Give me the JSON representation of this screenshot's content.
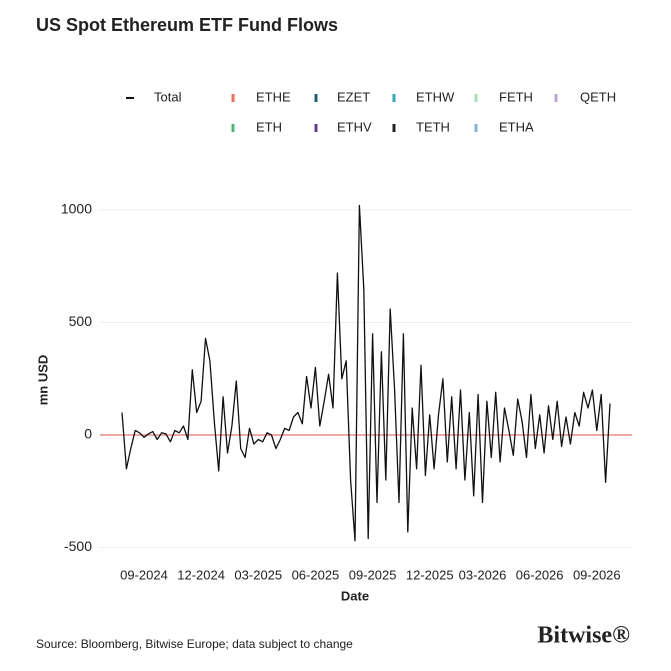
{
  "chart_data": {
    "type": "line",
    "title": "US Spot Ethereum ETF Fund Flows",
    "x_label": "Date",
    "y_label": "mn USD",
    "source": "Source: Bloomberg, Bitwise Europe; data subject to change",
    "brand": "Bitwise®",
    "categories": [
      null,
      null,
      null,
      null,
      null,
      "09-2024",
      null,
      null,
      null,
      null,
      null,
      null,
      null,
      null,
      null,
      null,
      null,
      null,
      "12-2024",
      null,
      null,
      null,
      null,
      null,
      null,
      null,
      null,
      null,
      null,
      null,
      null,
      "03-2025",
      null,
      null,
      null,
      null,
      null,
      null,
      null,
      null,
      null,
      null,
      null,
      null,
      "06-2025",
      null,
      null,
      null,
      null,
      null,
      null,
      null,
      null,
      null,
      null,
      null,
      null,
      "09-2025",
      null,
      null,
      null,
      null,
      null,
      null,
      null,
      null,
      null,
      null,
      null,
      null,
      "12-2025",
      null,
      null,
      null,
      null,
      null,
      null,
      null,
      null,
      null,
      null,
      null,
      "03-2026",
      null,
      null,
      null,
      null,
      null,
      null,
      null,
      null,
      null,
      null,
      null,
      null,
      "06-2026",
      null,
      null,
      null,
      null,
      null,
      null,
      null,
      null,
      null,
      null,
      null,
      null,
      "09-2026",
      null,
      null,
      null
    ],
    "series": [
      {
        "name": "Total",
        "color": "#111111",
        "values": [
          100,
          -150,
          -60,
          20,
          10,
          -10,
          5,
          15,
          -20,
          10,
          5,
          -30,
          20,
          10,
          40,
          -20,
          290,
          100,
          150,
          430,
          330,
          60,
          -160,
          170,
          -80,
          40,
          240,
          -60,
          -100,
          30,
          -40,
          -20,
          -30,
          10,
          0,
          -60,
          -20,
          30,
          20,
          80,
          100,
          50,
          260,
          120,
          300,
          40,
          150,
          270,
          120,
          720,
          250,
          330,
          -200,
          -470,
          1020,
          650,
          -460,
          450,
          -300,
          370,
          -200,
          560,
          200,
          -300,
          450,
          -430,
          120,
          -150,
          310,
          -180,
          90,
          -150,
          90,
          250,
          -120,
          170,
          -150,
          200,
          -200,
          100,
          -270,
          180,
          -300,
          150,
          -100,
          190,
          -120,
          120,
          20,
          -90,
          160,
          60,
          -100,
          180,
          -60,
          90,
          -80,
          130,
          -20,
          150,
          -50,
          80,
          -40,
          100,
          40,
          190,
          120,
          200,
          20,
          180,
          -210,
          140
        ]
      }
    ],
    "components": [
      {
        "name": "ETHE",
        "color": "#e8735a"
      },
      {
        "name": "EZET",
        "color": "#1f5f6e"
      },
      {
        "name": "ETHW",
        "color": "#3aa6b9"
      },
      {
        "name": "FETH",
        "color": "#a8dcb8"
      },
      {
        "name": "QETH",
        "color": "#b9a6d3"
      },
      {
        "name": "ETH",
        "color": "#4fb07f"
      },
      {
        "name": "ETHV",
        "color": "#5b3f8c"
      },
      {
        "name": "TETH",
        "color": "#222222"
      },
      {
        "name": "ETHA",
        "color": "#7fb3d5"
      }
    ],
    "ylim": [
      -540,
      1040
    ],
    "yticks": [
      -500,
      0,
      500,
      1000
    ],
    "grid": true
  }
}
